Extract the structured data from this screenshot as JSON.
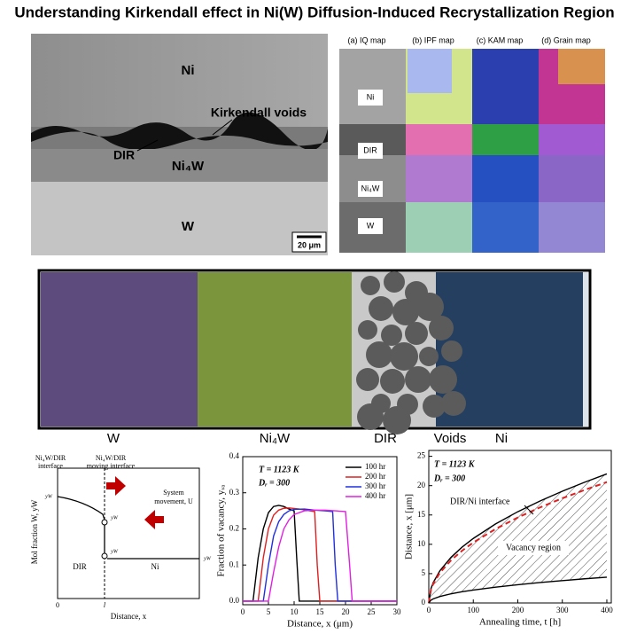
{
  "title": "Understanding Kirkendall effect in Ni(W) Diffusion-Induced Recrystallization Region",
  "micrograph": {
    "labels": [
      "Ni",
      "Kirkendall voids",
      "DIR",
      "Ni₄W",
      "W"
    ],
    "scale_bar": "20 μm"
  },
  "ebsd": {
    "panels": [
      "(a) IQ map",
      "(b) IPF map",
      "(c) KAM map",
      "(d) Grain map"
    ],
    "labels": [
      "Ni",
      "DIR",
      "Ni₄W",
      "W"
    ]
  },
  "schematic": {
    "labels": [
      "W",
      "Ni₄W",
      "DIR",
      "Voids",
      "Ni"
    ]
  },
  "mole_fraction_diagram": {
    "interface": [
      "Ni₄W/DIR",
      "interface"
    ],
    "moving_interface": [
      "Ni₄W/DIR",
      "moving interface"
    ],
    "system_movement": [
      "System",
      "movement, U"
    ],
    "y_label": "Mol fraction W, yW",
    "x_label": "Distance, x",
    "regions": [
      "DIR",
      "Ni"
    ],
    "x_marks": [
      "0",
      "l"
    ],
    "levels": [
      "yW",
      "yW",
      "yW",
      "yW"
    ]
  },
  "chart_data": [
    {
      "type": "line",
      "annotations": [
        "T = 1123 K",
        "Dᵣ = 300"
      ],
      "x_label": "Distance, x (μm)",
      "y_label": "Fraction of vacancy, yᵥₐ",
      "xlim": [
        0,
        30
      ],
      "xticks": [
        0,
        5,
        10,
        15,
        20,
        25,
        30
      ],
      "ylim": [
        -0.01,
        0.4
      ],
      "yticks": [
        {
          "value": 0,
          "label": "0.0"
        },
        0.1,
        0.2,
        0.3,
        0.4
      ],
      "legend": "upper right",
      "series": [
        {
          "name": "100 hr",
          "color": "#000000",
          "x": [
            0,
            2,
            3,
            4,
            5,
            6,
            7,
            8,
            9,
            10,
            10.5,
            11,
            30
          ],
          "values": [
            0,
            0,
            0.12,
            0.2,
            0.245,
            0.262,
            0.265,
            0.262,
            0.255,
            0.25,
            0.12,
            0,
            0
          ]
        },
        {
          "name": "200 hr",
          "color": "#e02020",
          "x": [
            0,
            3,
            4,
            5,
            6,
            7,
            8,
            9,
            11,
            13,
            14,
            14.5,
            15,
            30
          ],
          "values": [
            0,
            0,
            0.12,
            0.2,
            0.238,
            0.252,
            0.257,
            0.258,
            0.255,
            0.25,
            0.248,
            0.1,
            0,
            0
          ]
        },
        {
          "name": "300 hr",
          "color": "#2030e0",
          "x": [
            0,
            4,
            5,
            6,
            7,
            8,
            9,
            10,
            12,
            14,
            16,
            17.5,
            18,
            18.5,
            30
          ],
          "values": [
            0,
            0,
            0.1,
            0.18,
            0.22,
            0.24,
            0.25,
            0.254,
            0.255,
            0.252,
            0.25,
            0.248,
            0.1,
            0,
            0
          ]
        },
        {
          "name": "400 hr",
          "color": "#e020e0",
          "x": [
            0,
            5,
            6,
            7,
            8,
            9,
            10,
            12,
            14,
            16,
            18,
            20,
            20.8,
            21.3,
            30
          ],
          "values": [
            0,
            0,
            0.08,
            0.15,
            0.2,
            0.225,
            0.24,
            0.25,
            0.252,
            0.252,
            0.25,
            0.248,
            0.1,
            0,
            0
          ]
        }
      ]
    },
    {
      "type": "line",
      "annotations": [
        "T = 1123 K",
        "Dᵣ = 300",
        "DIR/Ni interface",
        "Vacancy region"
      ],
      "x_label": "Annealing time, t [h]",
      "y_label": "Distance, x [μm]",
      "xlim": [
        0,
        410
      ],
      "xticks": [
        0,
        100,
        200,
        300,
        400
      ],
      "ylim": [
        0,
        26
      ],
      "yticks": [
        0,
        5,
        10,
        15,
        20,
        25
      ],
      "hatched_region": true,
      "x": [
        0,
        5,
        10,
        25,
        50,
        75,
        100,
        150,
        200,
        250,
        300,
        350,
        400
      ],
      "series": [
        {
          "color": "#000000",
          "style": "solid",
          "values": [
            0,
            2.46,
            3.48,
            5.5,
            7.78,
            9.53,
            11,
            13.47,
            15.56,
            17.39,
            19.05,
            20.58,
            22
          ]
        },
        {
          "color": "#e02020",
          "style": "dashed",
          "values": [
            0,
            2.3,
            3.26,
            5.15,
            7.28,
            8.92,
            10.3,
            12.61,
            14.57,
            16.29,
            17.84,
            19.27,
            20.6
          ]
        },
        {
          "color": "#000000",
          "style": "solid",
          "values": [
            0,
            0.49,
            0.7,
            1.1,
            1.56,
            1.91,
            2.2,
            2.69,
            3.11,
            3.48,
            3.81,
            4.12,
            4.4
          ]
        }
      ]
    }
  ]
}
